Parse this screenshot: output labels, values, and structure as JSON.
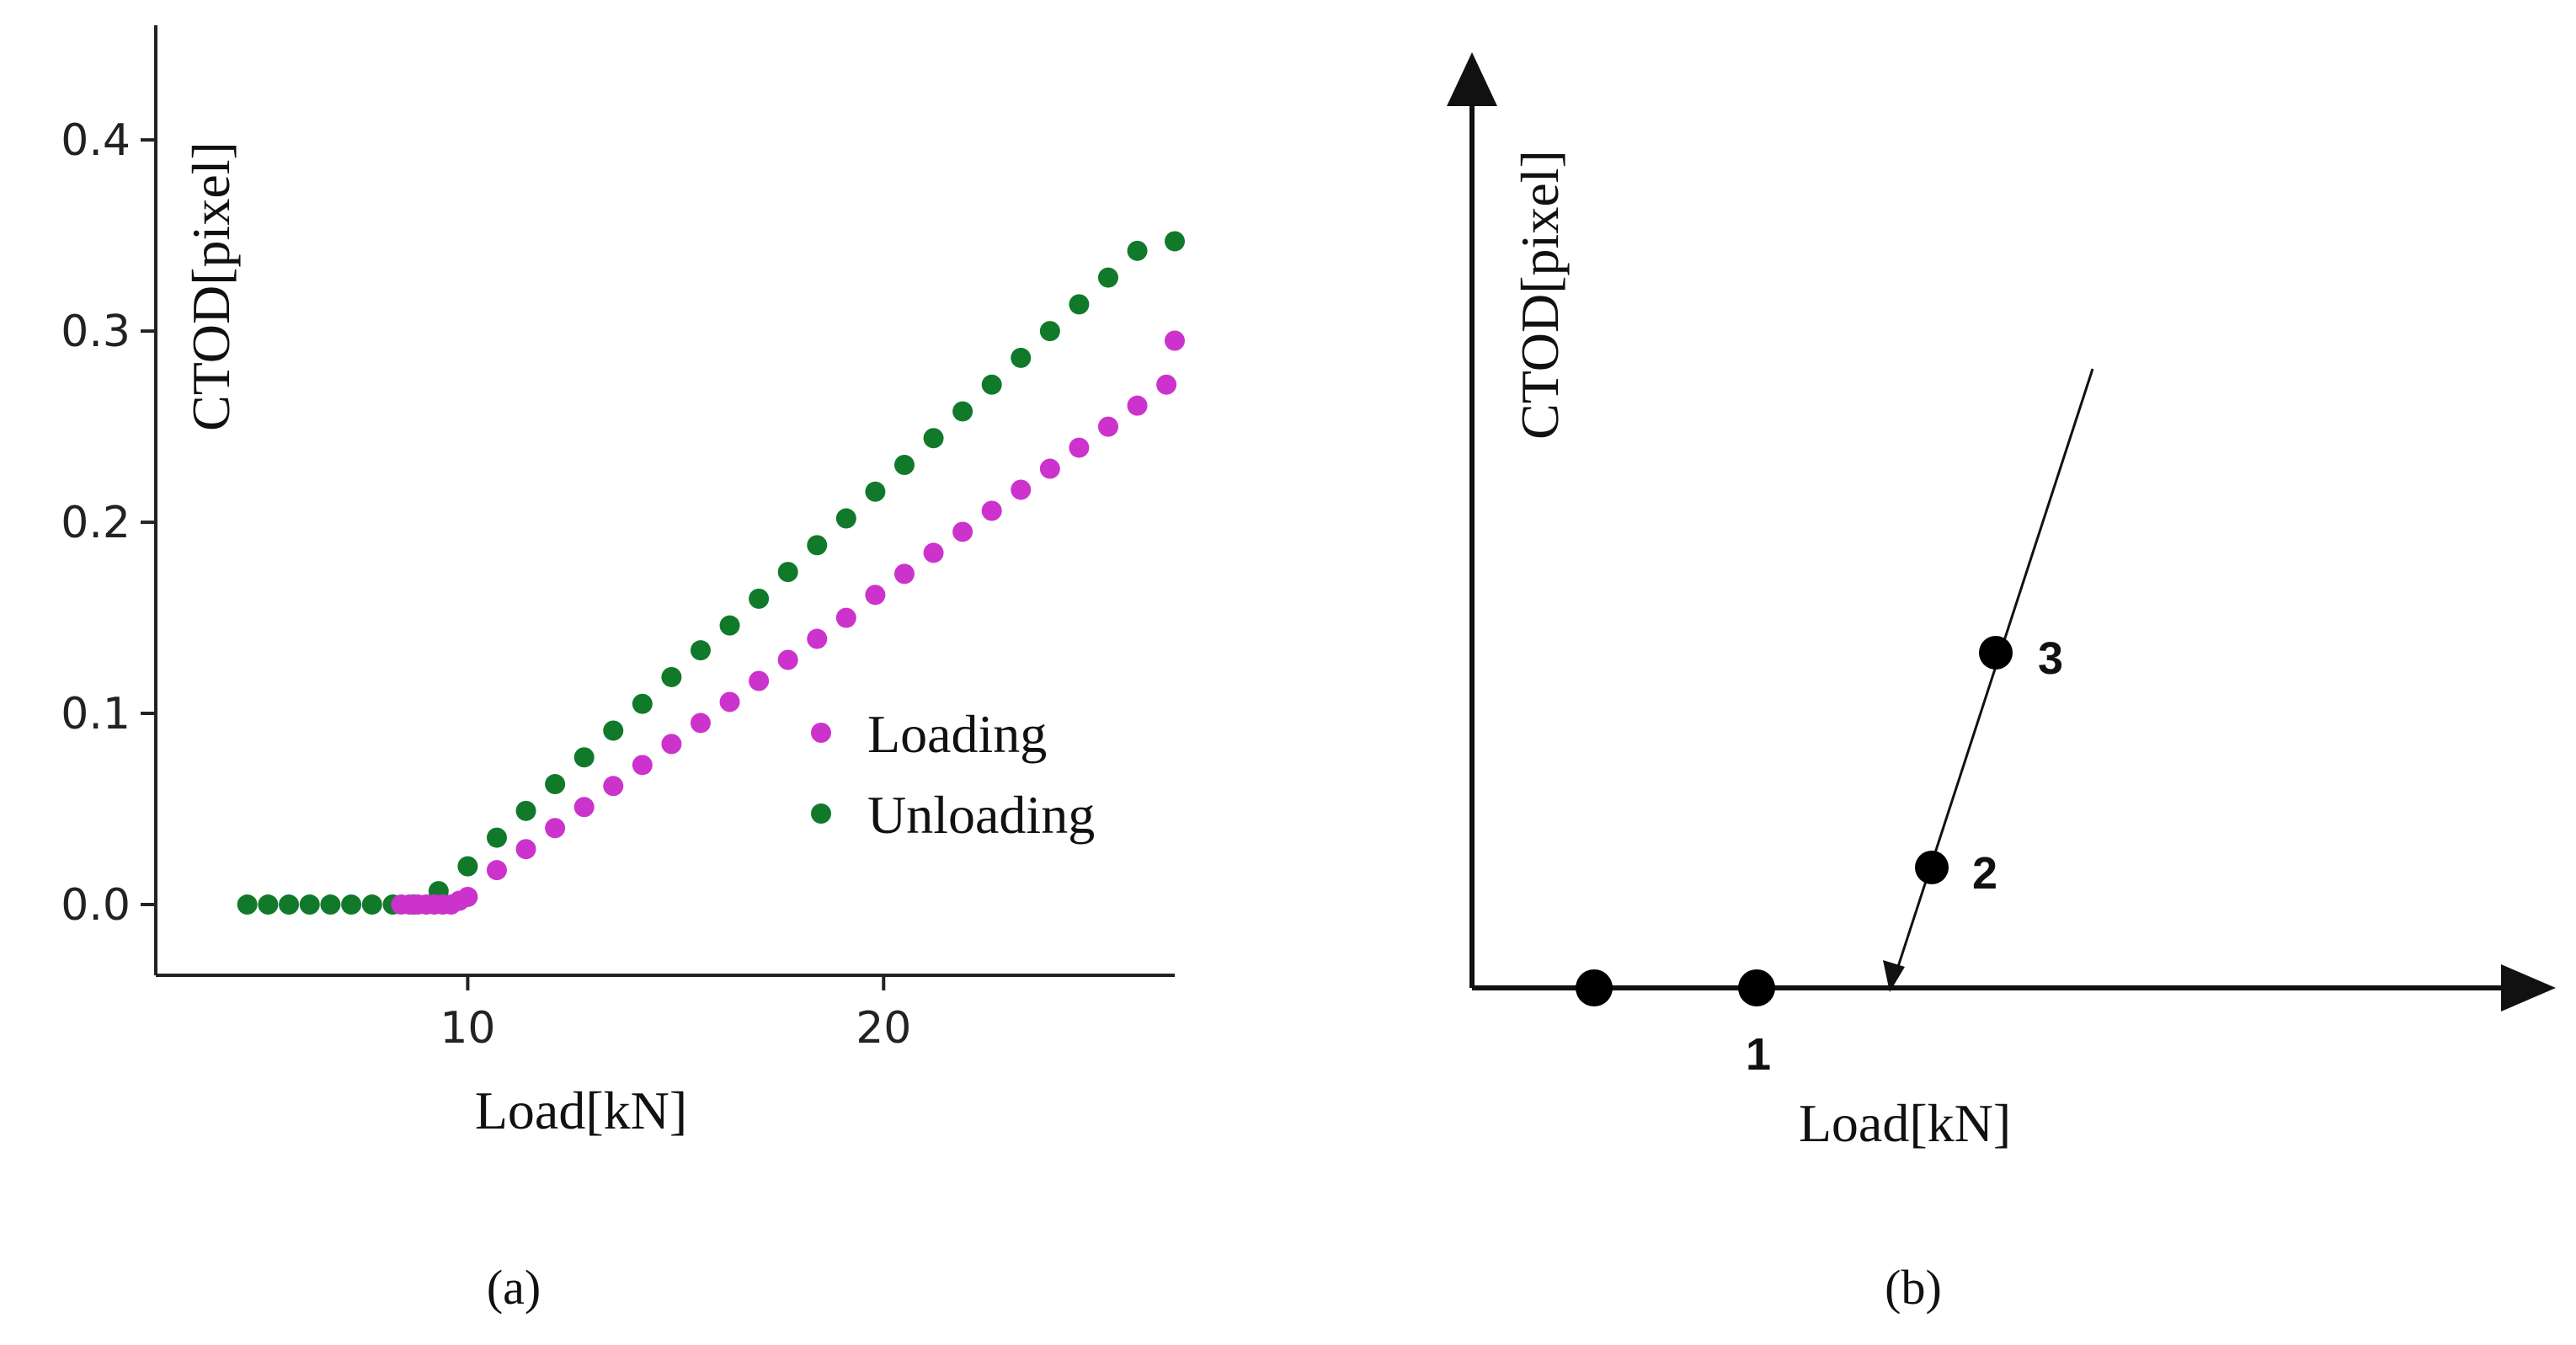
{
  "chart_data": [
    {
      "type": "scatter",
      "panel_label": "(a)",
      "xlabel": "Load[kN]",
      "ylabel": "CTOD[pixel]",
      "xlim": [
        2.5,
        27
      ],
      "ylim": [
        -0.037,
        0.46
      ],
      "xticks": [
        10,
        20
      ],
      "xtick_labels": [
        "10",
        "20"
      ],
      "yticks": [
        0.0,
        0.1,
        0.2,
        0.3,
        0.4
      ],
      "ytick_labels": [
        "0.0",
        "0.1",
        "0.2",
        "0.3",
        "0.4"
      ],
      "grid": false,
      "legend_position": "center-right",
      "series": [
        {
          "name": "Loading",
          "color": "#cc33cc",
          "points": [
            [
              8.4,
              0.0
            ],
            [
              8.6,
              0.0
            ],
            [
              8.8,
              0.0
            ],
            [
              9.0,
              0.0
            ],
            [
              9.2,
              0.0
            ],
            [
              9.4,
              0.0
            ],
            [
              9.6,
              0.0
            ],
            [
              9.8,
              0.002
            ],
            [
              10.0,
              0.004
            ],
            [
              10.7,
              0.018
            ],
            [
              11.4,
              0.029
            ],
            [
              12.1,
              0.04
            ],
            [
              12.8,
              0.051
            ],
            [
              13.5,
              0.062
            ],
            [
              14.2,
              0.073
            ],
            [
              14.9,
              0.084
            ],
            [
              15.6,
              0.095
            ],
            [
              16.3,
              0.106
            ],
            [
              17.0,
              0.117
            ],
            [
              17.7,
              0.128
            ],
            [
              18.4,
              0.139
            ],
            [
              19.1,
              0.15
            ],
            [
              19.8,
              0.162
            ],
            [
              20.5,
              0.173
            ],
            [
              21.2,
              0.184
            ],
            [
              21.9,
              0.195
            ],
            [
              22.6,
              0.206
            ],
            [
              23.3,
              0.217
            ],
            [
              24.0,
              0.228
            ],
            [
              24.7,
              0.239
            ],
            [
              25.4,
              0.25
            ],
            [
              26.1,
              0.261
            ],
            [
              26.8,
              0.272
            ],
            [
              27.0,
              0.295
            ]
          ]
        },
        {
          "name": "Unloading",
          "color": "#117a2a",
          "points": [
            [
              4.7,
              0.0
            ],
            [
              5.2,
              0.0
            ],
            [
              5.7,
              0.0
            ],
            [
              6.2,
              0.0
            ],
            [
              6.7,
              0.0
            ],
            [
              7.2,
              0.0
            ],
            [
              7.7,
              0.0
            ],
            [
              8.2,
              0.0
            ],
            [
              8.7,
              0.0
            ],
            [
              9.3,
              0.007
            ],
            [
              10.0,
              0.02
            ],
            [
              10.7,
              0.035
            ],
            [
              11.4,
              0.049
            ],
            [
              12.1,
              0.063
            ],
            [
              12.8,
              0.077
            ],
            [
              13.5,
              0.091
            ],
            [
              14.2,
              0.105
            ],
            [
              14.9,
              0.119
            ],
            [
              15.6,
              0.133
            ],
            [
              16.3,
              0.146
            ],
            [
              17.0,
              0.16
            ],
            [
              17.7,
              0.174
            ],
            [
              18.4,
              0.188
            ],
            [
              19.1,
              0.202
            ],
            [
              19.8,
              0.216
            ],
            [
              20.5,
              0.23
            ],
            [
              21.2,
              0.244
            ],
            [
              21.9,
              0.258
            ],
            [
              22.6,
              0.272
            ],
            [
              23.3,
              0.286
            ],
            [
              24.0,
              0.3
            ],
            [
              24.7,
              0.314
            ],
            [
              25.4,
              0.328
            ],
            [
              26.1,
              0.342
            ],
            [
              27.0,
              0.347
            ]
          ]
        }
      ]
    }
  ],
  "schematic": {
    "panel_label": "(b)",
    "xlabel": "Load[kN]",
    "ylabel": "CTOD[pixel]",
    "point_labels": [
      "1",
      "2",
      "3"
    ]
  }
}
